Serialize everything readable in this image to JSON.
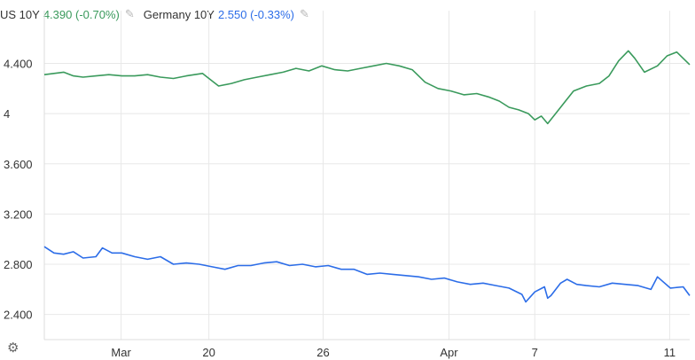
{
  "legend": [
    {
      "name": "US 10Y",
      "value": "4.390",
      "change": "(-0.70%)",
      "color": "#3a9a5c"
    },
    {
      "name": "Germany 10Y",
      "value": "2.550",
      "change": "(-0.33%)",
      "color": "#2c6de8"
    }
  ],
  "settings_icon": "gear-icon",
  "edit_icon": "pencil-icon",
  "chart_data": {
    "type": "line",
    "y_ticks": [
      "4.400",
      "4",
      "3.600",
      "3.200",
      "2.800",
      "2.400"
    ],
    "y_tick_values": [
      4.4,
      4.0,
      3.6,
      3.2,
      2.8,
      2.4
    ],
    "ylim": [
      2.2,
      4.82
    ],
    "xlim": [
      0,
      100
    ],
    "x_ticks": [
      {
        "label": "Mar",
        "x": 11.9
      },
      {
        "label": "20",
        "x": 25.5
      },
      {
        "label": "26",
        "x": 43.2
      },
      {
        "label": "Apr",
        "x": 62.7
      },
      {
        "label": "7",
        "x": 76.0
      },
      {
        "label": "11",
        "x": 96.9
      }
    ],
    "grid": true,
    "series": [
      {
        "name": "US 10Y",
        "color": "#3a9a5c",
        "x": [
          0,
          1.5,
          3,
          4.5,
          6,
          8,
          10,
          12,
          14,
          16,
          18,
          20,
          22,
          24.5,
          25,
          27,
          29,
          31,
          33,
          35,
          37,
          39,
          41,
          43,
          45,
          47,
          49,
          51,
          53,
          55,
          57,
          59,
          61,
          63,
          65,
          67,
          69,
          70.5,
          72,
          73.5,
          75,
          76,
          77,
          78,
          80,
          82,
          84,
          86,
          87.5,
          89,
          90.5,
          91.5,
          93,
          95,
          96.5,
          98,
          100
        ],
        "y": [
          4.31,
          4.32,
          4.33,
          4.3,
          4.29,
          4.3,
          4.31,
          4.3,
          4.3,
          4.31,
          4.29,
          4.28,
          4.3,
          4.32,
          4.3,
          4.22,
          4.24,
          4.27,
          4.29,
          4.31,
          4.33,
          4.36,
          4.34,
          4.38,
          4.35,
          4.34,
          4.36,
          4.38,
          4.4,
          4.38,
          4.35,
          4.25,
          4.2,
          4.18,
          4.15,
          4.16,
          4.13,
          4.1,
          4.05,
          4.03,
          4.0,
          3.95,
          3.98,
          3.92,
          4.05,
          4.18,
          4.22,
          4.24,
          4.3,
          4.42,
          4.5,
          4.44,
          4.33,
          4.38,
          4.46,
          4.49,
          4.39
        ]
      },
      {
        "name": "Germany 10Y",
        "color": "#2c6de8",
        "x": [
          0,
          1.5,
          3,
          4.5,
          6,
          8,
          9,
          10.5,
          12,
          14,
          16,
          18,
          20,
          22,
          24,
          26,
          28,
          30,
          32,
          34,
          36,
          38,
          40,
          42,
          44,
          46,
          48,
          50,
          52,
          54,
          56,
          58,
          60,
          62,
          64,
          66,
          68,
          70,
          72,
          74,
          74.6,
          76,
          77.5,
          78,
          78.5,
          80,
          81,
          82.5,
          84,
          86,
          88,
          90,
          92,
          94,
          95,
          97,
          99,
          100
        ],
        "y": [
          2.94,
          2.89,
          2.88,
          2.9,
          2.85,
          2.86,
          2.93,
          2.89,
          2.89,
          2.86,
          2.84,
          2.86,
          2.8,
          2.81,
          2.8,
          2.78,
          2.76,
          2.79,
          2.79,
          2.81,
          2.82,
          2.79,
          2.8,
          2.78,
          2.79,
          2.76,
          2.76,
          2.72,
          2.73,
          2.72,
          2.71,
          2.7,
          2.68,
          2.69,
          2.66,
          2.64,
          2.65,
          2.63,
          2.61,
          2.56,
          2.5,
          2.58,
          2.62,
          2.53,
          2.55,
          2.65,
          2.68,
          2.64,
          2.63,
          2.62,
          2.65,
          2.64,
          2.63,
          2.6,
          2.7,
          2.61,
          2.62,
          2.55
        ]
      }
    ]
  }
}
